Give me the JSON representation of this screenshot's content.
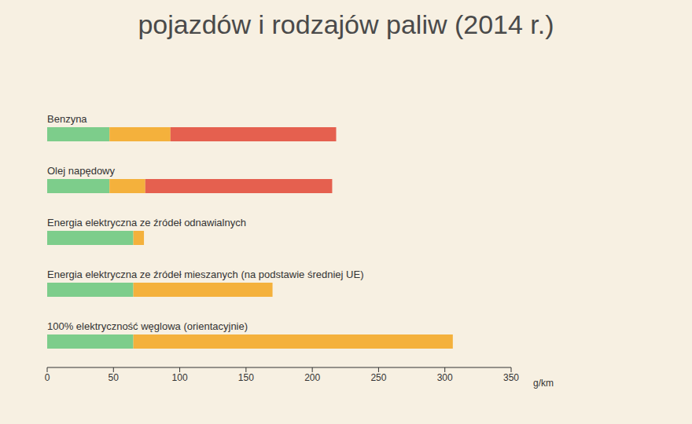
{
  "chart_data": {
    "type": "bar",
    "orientation": "horizontal",
    "stacked": true,
    "title": "pojazdów i rodzajów paliw (2014 r.)",
    "x_label": "g/km",
    "categories": [
      "Benzyna",
      "Olej napędowy",
      "Energia elektryczna ze źródeł odnawialnych",
      "Energia elektryczna ze źródeł mieszanych (na podstawie średniej UE)",
      "100% elektryczność węglowa (orientacyjnie)"
    ],
    "series": [
      {
        "color": "#7dcd8b",
        "values": [
          47,
          47,
          65,
          65,
          65
        ]
      },
      {
        "color": "#f4b13c",
        "values": [
          46,
          27,
          8,
          105,
          241
        ]
      },
      {
        "color": "#e5604f",
        "values": [
          125,
          141,
          0,
          0,
          0
        ]
      }
    ],
    "xlim": [
      0,
      350
    ],
    "xticks": [
      0,
      50,
      100,
      150,
      200,
      250,
      300,
      350
    ],
    "grid": false
  }
}
